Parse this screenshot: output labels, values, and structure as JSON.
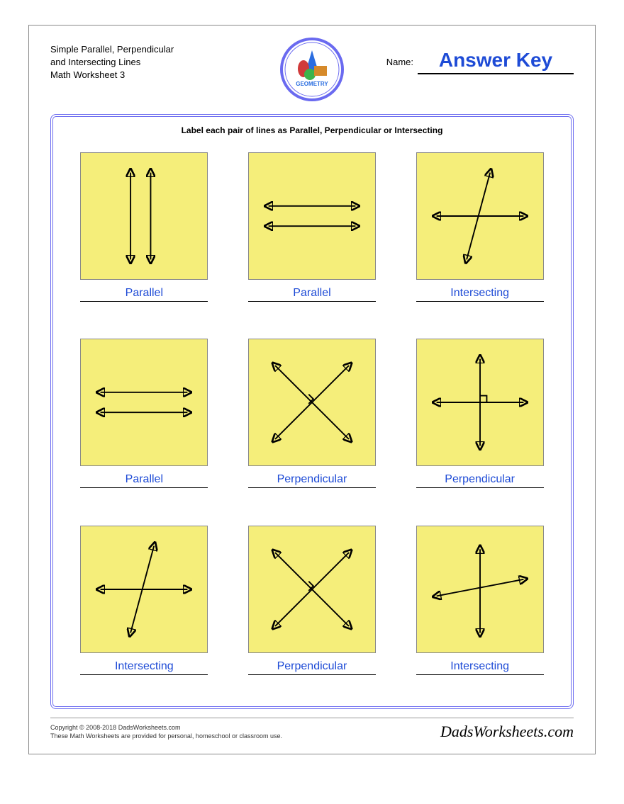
{
  "header": {
    "title_line1": "Simple Parallel, Perpendicular",
    "title_line2": "and Intersecting Lines",
    "title_line3": "Math Worksheet 3",
    "name_label": "Name:",
    "name_value": "Answer Key",
    "logo_text": "GEOMETRY"
  },
  "instruction": "Label each pair of lines as Parallel, Perpendicular or Intersecting",
  "tile_bg": "#f5ee7a",
  "tile_border": "#888888",
  "answer_color": "#1e4bd6",
  "frame_border": "#6a6af0",
  "problems": [
    {
      "type": "parallel-v",
      "answer": "Parallel"
    },
    {
      "type": "parallel-h",
      "answer": "Parallel"
    },
    {
      "type": "intersect-steep",
      "answer": "Intersecting"
    },
    {
      "type": "parallel-h",
      "answer": "Parallel"
    },
    {
      "type": "perp-x",
      "answer": "Perpendicular"
    },
    {
      "type": "perp-plus",
      "answer": "Perpendicular"
    },
    {
      "type": "intersect-steep",
      "answer": "Intersecting"
    },
    {
      "type": "perp-x",
      "answer": "Perpendicular"
    },
    {
      "type": "intersect-shallow",
      "answer": "Intersecting"
    }
  ],
  "footer": {
    "copyright": "Copyright © 2008-2018 DadsWorksheets.com",
    "disclaimer": "These Math Worksheets are provided for personal, homeschool or classroom use.",
    "brand": "DadsWorksheets.com"
  }
}
